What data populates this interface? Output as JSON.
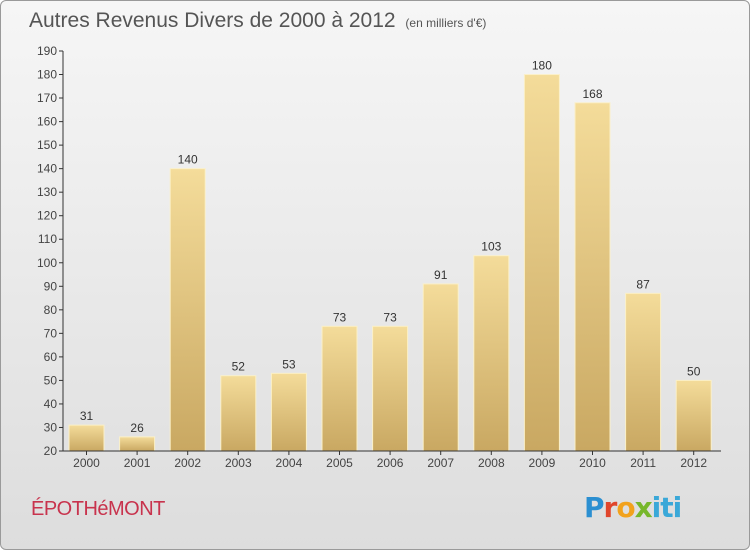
{
  "header": {
    "title": "Autres Revenus Divers de 2000 à 2012",
    "unit": "(en milliers d'€)"
  },
  "footer": {
    "commune": "ÉPOTHéMONT",
    "logo_text": "Proxiti"
  },
  "chart_data": {
    "type": "bar",
    "title": "Autres Revenus Divers de 2000 à 2012",
    "subtitle": "(en milliers d'€)",
    "categories": [
      "2000",
      "2001",
      "2002",
      "2003",
      "2004",
      "2005",
      "2006",
      "2007",
      "2008",
      "2009",
      "2010",
      "2011",
      "2012"
    ],
    "values": [
      31,
      26,
      140,
      52,
      53,
      73,
      73,
      91,
      103,
      180,
      168,
      87,
      50
    ],
    "ylim": [
      20,
      190
    ],
    "yticks": [
      20,
      30,
      40,
      50,
      60,
      70,
      80,
      90,
      100,
      110,
      120,
      130,
      140,
      150,
      160,
      170,
      180,
      190
    ],
    "grid": false,
    "colors": {
      "bar_light": "#f4dc9a",
      "bar_dark": "#c9a862",
      "axis": "#333333"
    }
  }
}
